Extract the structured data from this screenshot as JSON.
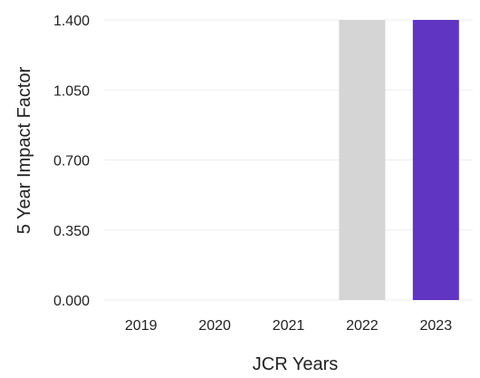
{
  "chart_data": {
    "type": "bar",
    "xlabel": "JCR Years",
    "ylabel": "5 Year Impact Factor",
    "categories": [
      "2019",
      "2020",
      "2021",
      "2022",
      "2023"
    ],
    "values": [
      0,
      0,
      0,
      1.4,
      1.4
    ],
    "ylim": [
      0,
      1.4
    ],
    "yticks": [
      "0.000",
      "0.350",
      "0.700",
      "1.050",
      "1.400"
    ],
    "ytick_values": [
      0,
      0.35,
      0.7,
      1.05,
      1.4
    ],
    "bar_colors": [
      "#d5d5d5",
      "#d5d5d5",
      "#d5d5d5",
      "#d5d5d5",
      "#5f35c2"
    ],
    "grid": true,
    "grid_color": "#eeeeee"
  }
}
